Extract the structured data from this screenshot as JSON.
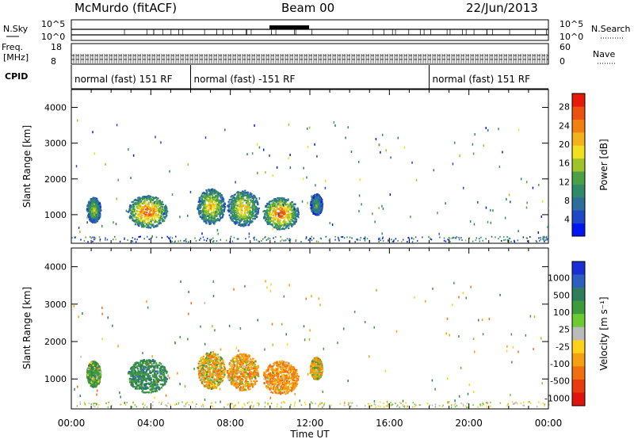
{
  "header": {
    "station": "McMurdo (fitACF)",
    "beam": "Beam 00",
    "date": "22/Jun/2013"
  },
  "summary_labels": {
    "nsky": "N.Sky",
    "freq_line1": "Freq.",
    "freq_line2": "[MHz]",
    "cpid": "CPID",
    "nsearch": "N.Search",
    "nave": "Nave",
    "noise_tick_top": "10^5",
    "noise_tick_bottom": "10^0",
    "noise_tick_top_right": "10^5",
    "noise_tick_bottom_right": "10^0",
    "freq_tick_top": "18",
    "freq_tick_bottom": "8",
    "nave_tick_top": "60",
    "nave_tick_bottom": "0"
  },
  "cpid_segments": [
    {
      "label": "normal (fast) 151 RF",
      "start_hour": 0,
      "end_hour": 6
    },
    {
      "label": "normal (fast) -151 RF",
      "start_hour": 6,
      "end_hour": 18
    },
    {
      "label": "normal (fast) 151 RF",
      "start_hour": 18,
      "end_hour": 24
    }
  ],
  "chart_data": [
    {
      "type": "heatmap",
      "name": "power-panel",
      "ylabel": "Slant Range [km]",
      "ylim": [
        200,
        4500
      ],
      "yticks": [
        "1000",
        "2000",
        "3000",
        "4000"
      ],
      "xlim_hours": [
        0,
        24
      ],
      "colorbar_label": "Power [dB]",
      "colorbar_ticks": [
        "4",
        "8",
        "12",
        "16",
        "20",
        "24",
        "28"
      ],
      "colorbar_colors": [
        "#0016f0",
        "#1e48c8",
        "#2e6e9a",
        "#2f8a6a",
        "#4aa045",
        "#a0c32a",
        "#f0e020",
        "#f3b21a",
        "#f08010",
        "#ee5010",
        "#e51a0a"
      ],
      "scatter_blobs": [
        {
          "hour": 1.1,
          "range_km": 1150,
          "width_h": 0.7,
          "height_km": 700,
          "peak_db": 18
        },
        {
          "hour": 3.8,
          "range_km": 1100,
          "width_h": 2.0,
          "height_km": 900,
          "peak_db": 28
        },
        {
          "hour": 7.0,
          "range_km": 1250,
          "width_h": 1.4,
          "height_km": 1000,
          "peak_db": 22
        },
        {
          "hour": 8.6,
          "range_km": 1200,
          "width_h": 1.6,
          "height_km": 1000,
          "peak_db": 22
        },
        {
          "hour": 10.5,
          "range_km": 1050,
          "width_h": 1.8,
          "height_km": 900,
          "peak_db": 28
        },
        {
          "hour": 12.3,
          "range_km": 1300,
          "width_h": 0.6,
          "height_km": 600,
          "peak_db": 14
        }
      ]
    },
    {
      "type": "heatmap",
      "name": "velocity-panel",
      "ylabel": "Slant Range [km]",
      "ylim": [
        200,
        4500
      ],
      "yticks": [
        "1000",
        "2000",
        "3000",
        "4000"
      ],
      "xlim_hours": [
        0,
        24
      ],
      "xticks": [
        "00:00",
        "04:00",
        "08:00",
        "12:00",
        "16:00",
        "20:00",
        "00:00"
      ],
      "xlabel": "Time UT",
      "colorbar_label": "Velocity [m s⁻¹]",
      "colorbar_ticks": [
        "1000",
        "500",
        "100",
        "25",
        "-25",
        "-100",
        "-500",
        "-1000"
      ],
      "colorbar_colors": [
        "#1a2ed6",
        "#2d5fc0",
        "#2f7d5a",
        "#3d9a3d",
        "#6ccb32",
        "#bbbbbb",
        "#ffd21a",
        "#f5a010",
        "#f07010",
        "#e83b10",
        "#e0140c"
      ],
      "scatter_blobs": [
        {
          "hour": 1.1,
          "range_km": 1150,
          "width_h": 0.7,
          "height_km": 700,
          "v": 300
        },
        {
          "hour": 3.8,
          "range_km": 1100,
          "width_h": 2.0,
          "height_km": 900,
          "v": 600
        },
        {
          "hour": 7.0,
          "range_km": 1250,
          "width_h": 1.4,
          "height_km": 1000,
          "v": -200
        },
        {
          "hour": 8.6,
          "range_km": 1200,
          "width_h": 1.6,
          "height_km": 1000,
          "v": -300
        },
        {
          "hour": 10.5,
          "range_km": 1050,
          "width_h": 1.8,
          "height_km": 900,
          "v": -400
        },
        {
          "hour": 12.3,
          "range_km": 1300,
          "width_h": 0.6,
          "height_km": 600,
          "v": -200
        }
      ]
    }
  ]
}
